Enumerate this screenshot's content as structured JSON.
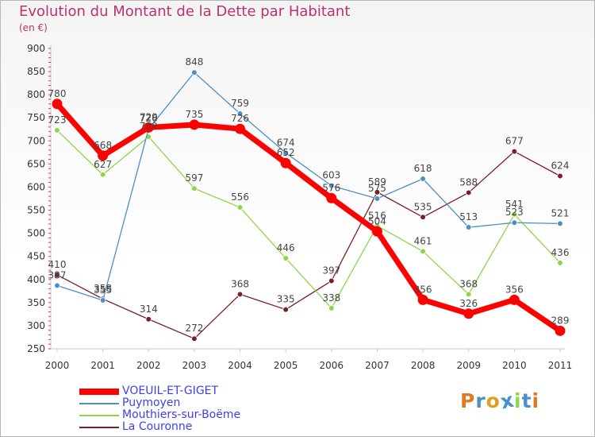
{
  "title": "Evolution du Montant de la Dette par Habitant",
  "unit": "(en €)",
  "chart_data": {
    "type": "line",
    "title": "Evolution du Montant de la Dette par Habitant",
    "ylabel": "(en €)",
    "xlabel": "",
    "x": [
      "2000",
      "2001",
      "2002",
      "2003",
      "2004",
      "2005",
      "2006",
      "2007",
      "2008",
      "2009",
      "2010",
      "2011"
    ],
    "ylim": [
      250,
      900
    ],
    "yticks": [
      250,
      300,
      350,
      400,
      450,
      500,
      550,
      600,
      650,
      700,
      750,
      800,
      850,
      900
    ],
    "grid": false,
    "legend_position": "bottom-left",
    "series": [
      {
        "name": "VOEUIL-ET-GIGET",
        "color": "#ff0000",
        "values": [
          780,
          668,
          729,
          735,
          726,
          652,
          576,
          504,
          356,
          326,
          356,
          289
        ]
      },
      {
        "name": "Puymoyen",
        "color": "#4a90c8",
        "values": [
          387,
          355,
          726,
          848,
          759,
          674,
          603,
          575,
          618,
          513,
          523,
          521
        ]
      },
      {
        "name": "Mouthiers-sur-Boëme",
        "color": "#8ed649",
        "values": [
          723,
          627,
          709,
          597,
          556,
          446,
          338,
          516,
          461,
          368,
          541,
          436
        ]
      },
      {
        "name": "La Couronne",
        "color": "#7a1e28",
        "values": [
          410,
          358,
          314,
          272,
          368,
          335,
          397,
          589,
          535,
          588,
          677,
          624
        ]
      }
    ]
  },
  "logo": {
    "letters": [
      "P",
      "r",
      "o",
      "x",
      "i",
      "t",
      "i"
    ],
    "colors": [
      "#e07a20",
      "#4a90c8",
      "#e0a020",
      "#4a90c8",
      "#8ed649",
      "#4a90c8",
      "#e07a20"
    ]
  }
}
